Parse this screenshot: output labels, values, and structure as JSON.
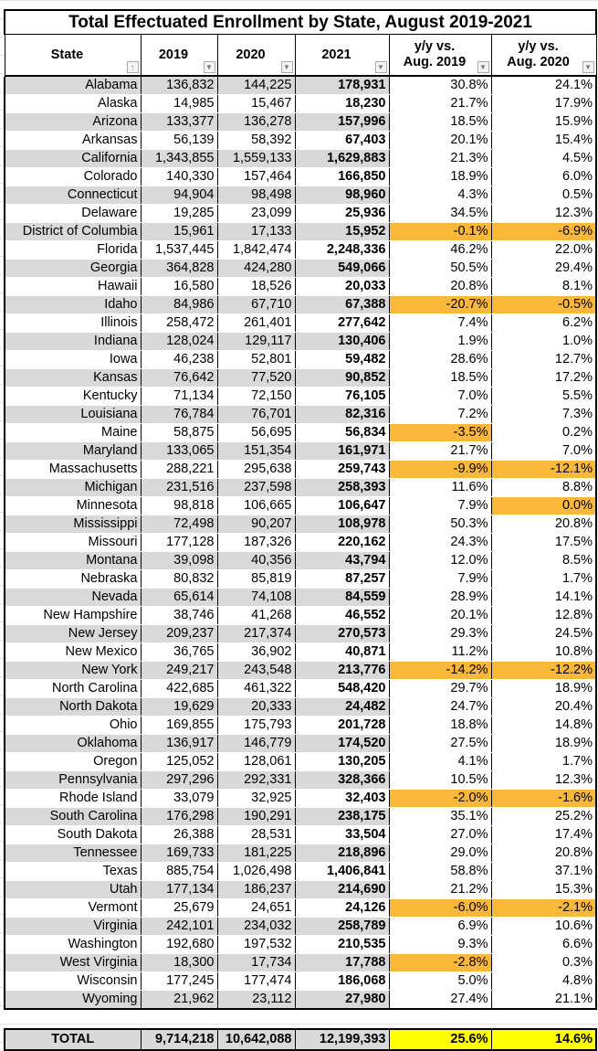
{
  "title": "Total Effectuated Enrollment by State, August 2019-2021",
  "columns": [
    "State",
    "2019",
    "2020",
    "2021",
    "y/y vs. Aug. 2019",
    "y/y vs. Aug. 2020"
  ],
  "column_lines": [
    [
      "State"
    ],
    [
      "2019"
    ],
    [
      "2020"
    ],
    [
      "2021"
    ],
    [
      "y/y vs.",
      "Aug. 2019"
    ],
    [
      "y/y vs.",
      "Aug. 2020"
    ]
  ],
  "colors": {
    "row_shade": "#d9d9d9",
    "decline_highlight": "#fab83a",
    "total_highlight": "#ffff00"
  },
  "rows": [
    [
      "Alabama",
      "136,832",
      "144,225",
      "178,931",
      "30.8%",
      "24.1%"
    ],
    [
      "Alaska",
      "14,985",
      "15,467",
      "18,230",
      "21.7%",
      "17.9%"
    ],
    [
      "Arizona",
      "133,377",
      "136,278",
      "157,996",
      "18.5%",
      "15.9%"
    ],
    [
      "Arkansas",
      "56,139",
      "58,392",
      "67,403",
      "20.1%",
      "15.4%"
    ],
    [
      "California",
      "1,343,855",
      "1,559,133",
      "1,629,883",
      "21.3%",
      "4.5%"
    ],
    [
      "Colorado",
      "140,330",
      "157,464",
      "166,850",
      "18.9%",
      "6.0%"
    ],
    [
      "Connecticut",
      "94,904",
      "98,498",
      "98,960",
      "4.3%",
      "0.5%"
    ],
    [
      "Delaware",
      "19,285",
      "23,099",
      "25,936",
      "34.5%",
      "12.3%"
    ],
    [
      "District of Columbia",
      "15,961",
      "17,133",
      "15,952",
      "-0.1%",
      "-6.9%"
    ],
    [
      "Florida",
      "1,537,445",
      "1,842,474",
      "2,248,336",
      "46.2%",
      "22.0%"
    ],
    [
      "Georgia",
      "364,828",
      "424,280",
      "549,066",
      "50.5%",
      "29.4%"
    ],
    [
      "Hawaii",
      "16,580",
      "18,526",
      "20,033",
      "20.8%",
      "8.1%"
    ],
    [
      "Idaho",
      "84,986",
      "67,710",
      "67,388",
      "-20.7%",
      "-0.5%"
    ],
    [
      "Illinois",
      "258,472",
      "261,401",
      "277,642",
      "7.4%",
      "6.2%"
    ],
    [
      "Indiana",
      "128,024",
      "129,117",
      "130,406",
      "1.9%",
      "1.0%"
    ],
    [
      "Iowa",
      "46,238",
      "52,801",
      "59,482",
      "28.6%",
      "12.7%"
    ],
    [
      "Kansas",
      "76,642",
      "77,520",
      "90,852",
      "18.5%",
      "17.2%"
    ],
    [
      "Kentucky",
      "71,134",
      "72,150",
      "76,105",
      "7.0%",
      "5.5%"
    ],
    [
      "Louisiana",
      "76,784",
      "76,701",
      "82,316",
      "7.2%",
      "7.3%"
    ],
    [
      "Maine",
      "58,875",
      "56,695",
      "56,834",
      "-3.5%",
      "0.2%"
    ],
    [
      "Maryland",
      "133,065",
      "151,354",
      "161,971",
      "21.7%",
      "7.0%"
    ],
    [
      "Massachusetts",
      "288,221",
      "295,638",
      "259,743",
      "-9.9%",
      "-12.1%"
    ],
    [
      "Michigan",
      "231,516",
      "237,598",
      "258,393",
      "11.6%",
      "8.8%"
    ],
    [
      "Minnesota",
      "98,818",
      "106,665",
      "106,647",
      "7.9%",
      "0.0%"
    ],
    [
      "Mississippi",
      "72,498",
      "90,207",
      "108,978",
      "50.3%",
      "20.8%"
    ],
    [
      "Missouri",
      "177,128",
      "187,326",
      "220,162",
      "24.3%",
      "17.5%"
    ],
    [
      "Montana",
      "39,098",
      "40,356",
      "43,794",
      "12.0%",
      "8.5%"
    ],
    [
      "Nebraska",
      "80,832",
      "85,819",
      "87,257",
      "7.9%",
      "1.7%"
    ],
    [
      "Nevada",
      "65,614",
      "74,108",
      "84,559",
      "28.9%",
      "14.1%"
    ],
    [
      "New Hampshire",
      "38,746",
      "41,268",
      "46,552",
      "20.1%",
      "12.8%"
    ],
    [
      "New Jersey",
      "209,237",
      "217,374",
      "270,573",
      "29.3%",
      "24.5%"
    ],
    [
      "New Mexico",
      "36,765",
      "36,902",
      "40,871",
      "11.2%",
      "10.8%"
    ],
    [
      "New York",
      "249,217",
      "243,548",
      "213,776",
      "-14.2%",
      "-12.2%"
    ],
    [
      "North Carolina",
      "422,685",
      "461,322",
      "548,420",
      "29.7%",
      "18.9%"
    ],
    [
      "North Dakota",
      "19,629",
      "20,333",
      "24,482",
      "24.7%",
      "20.4%"
    ],
    [
      "Ohio",
      "169,855",
      "175,793",
      "201,728",
      "18.8%",
      "14.8%"
    ],
    [
      "Oklahoma",
      "136,917",
      "146,779",
      "174,520",
      "27.5%",
      "18.9%"
    ],
    [
      "Oregon",
      "125,052",
      "128,061",
      "130,205",
      "4.1%",
      "1.7%"
    ],
    [
      "Pennsylvania",
      "297,296",
      "292,331",
      "328,366",
      "10.5%",
      "12.3%"
    ],
    [
      "Rhode Island",
      "33,079",
      "32,925",
      "32,403",
      "-2.0%",
      "-1.6%"
    ],
    [
      "South Carolina",
      "176,298",
      "190,291",
      "238,175",
      "35.1%",
      "25.2%"
    ],
    [
      "South Dakota",
      "26,388",
      "28,531",
      "33,504",
      "27.0%",
      "17.4%"
    ],
    [
      "Tennessee",
      "169,733",
      "181,225",
      "218,896",
      "29.0%",
      "20.8%"
    ],
    [
      "Texas",
      "885,754",
      "1,026,498",
      "1,406,841",
      "58.8%",
      "37.1%"
    ],
    [
      "Utah",
      "177,134",
      "186,237",
      "214,690",
      "21.2%",
      "15.3%"
    ],
    [
      "Vermont",
      "25,679",
      "24,651",
      "24,126",
      "-6.0%",
      "-2.1%"
    ],
    [
      "Virginia",
      "242,101",
      "234,032",
      "258,789",
      "6.9%",
      "10.6%"
    ],
    [
      "Washington",
      "192,680",
      "197,532",
      "210,535",
      "9.3%",
      "6.6%"
    ],
    [
      "West Virginia",
      "18,300",
      "17,734",
      "17,788",
      "-2.8%",
      "0.3%"
    ],
    [
      "Wisconsin",
      "177,245",
      "177,474",
      "186,068",
      "5.0%",
      "4.8%"
    ],
    [
      "Wyoming",
      "21,962",
      "23,112",
      "27,980",
      "27.4%",
      "21.1%"
    ]
  ],
  "total": [
    "TOTAL",
    "9,714,218",
    "10,642,088",
    "12,199,393",
    "25.6%",
    "14.6%"
  ]
}
